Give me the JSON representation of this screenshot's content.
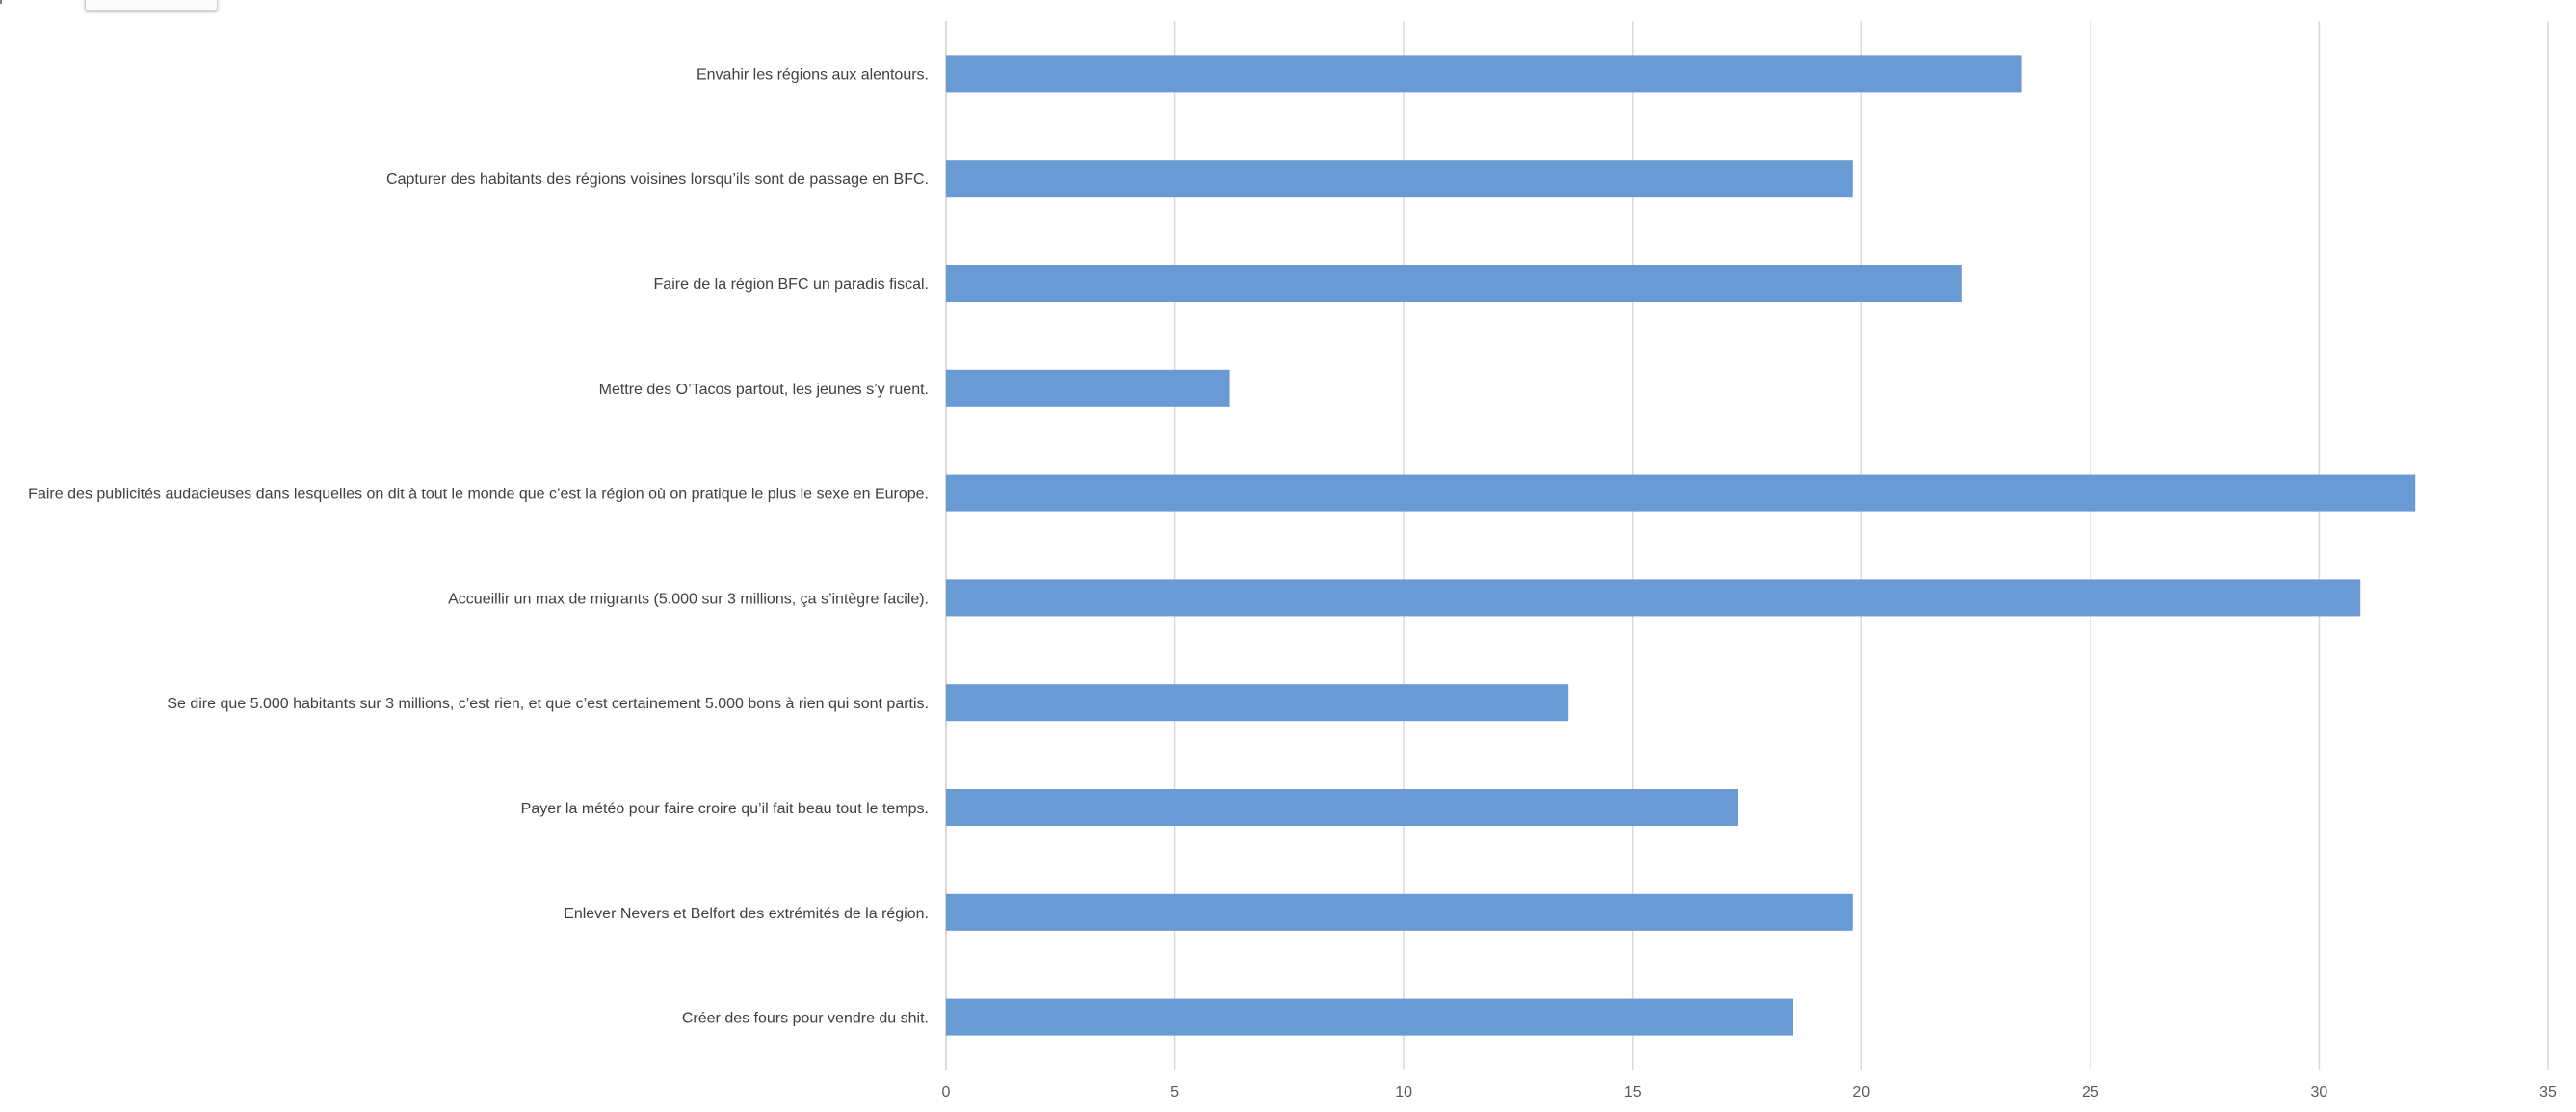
{
  "chart_data": {
    "type": "bar",
    "orientation": "horizontal",
    "categories": [
      "Envahir les régions aux alentours.",
      "Capturer des habitants des régions voisines lorsqu’ils sont de passage en BFC.",
      "Faire de la région BFC un paradis fiscal.",
      "Mettre des O’Tacos partout, les jeunes s’y ruent.",
      "Faire des publicités audacieuses dans lesquelles on dit à tout le monde que c’est la région où on pratique le plus le sexe en Europe.",
      "Accueillir un max de migrants (5.000 sur 3 millions, ça s’intègre facile).",
      "Se dire que 5.000 habitants sur 3 millions, c’est rien, et que c’est certainement 5.000 bons à rien qui sont partis.",
      "Payer la météo pour faire croire qu’il fait beau tout le temps.",
      "Enlever Nevers et Belfort des extrémités de la région.",
      "Créer des fours pour vendre du shit."
    ],
    "values": [
      23.5,
      19.8,
      22.2,
      6.2,
      32.1,
      30.9,
      13.6,
      17.3,
      19.8,
      18.5
    ],
    "xlim": [
      0,
      35
    ],
    "xticks": [
      "0",
      "5",
      "10",
      "15",
      "20",
      "25",
      "30",
      "35"
    ],
    "title": "",
    "xlabel": "",
    "ylabel": "",
    "grid": "vertical",
    "legend": "none",
    "bar_color": "#6a9ad4",
    "grid_color": "#d9d9d9",
    "label_color": "#404040"
  }
}
